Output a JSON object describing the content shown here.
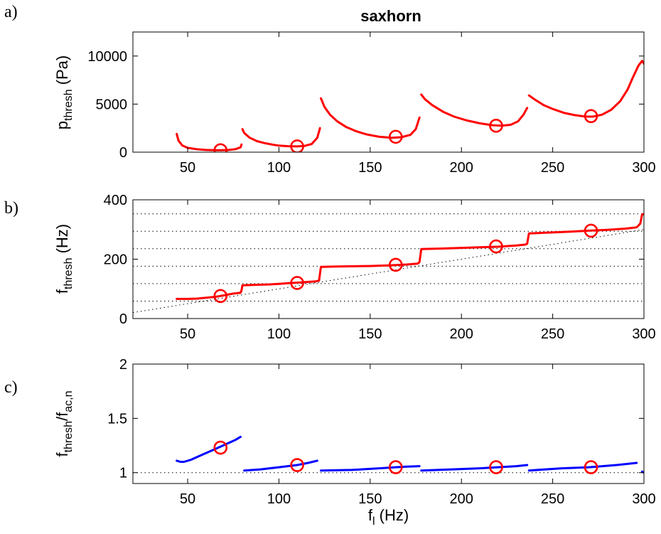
{
  "title": "saxhorn",
  "panel_labels": [
    "a)",
    "b)",
    "c)"
  ],
  "colors": {
    "red": "#ff0000",
    "blue": "#0000ff",
    "axis": "#000000",
    "ref": "#000000"
  },
  "chart_data": [
    {
      "panel": "a)",
      "type": "line",
      "ylabel": {
        "base": "p",
        "sub": "thresh",
        "unit": " (Pa)"
      },
      "xlabel": "",
      "xlim": [
        20,
        300
      ],
      "ylim": [
        0,
        12500
      ],
      "xticks": [
        "50",
        "100",
        "150",
        "200",
        "250",
        "300"
      ],
      "xtick_values": [
        50,
        100,
        150,
        200,
        250,
        300
      ],
      "yticks": [
        "0",
        "5000",
        "10000"
      ],
      "ytick_values": [
        0,
        5000,
        10000
      ],
      "series": [
        {
          "color": "#ff0000",
          "segments": [
            [
              [
                44,
                1900
              ],
              [
                45,
                1200
              ],
              [
                47,
                700
              ],
              [
                50,
                450
              ],
              [
                55,
                300
              ],
              [
                60,
                230
              ],
              [
                65,
                200
              ],
              [
                68,
                200
              ],
              [
                72,
                220
              ],
              [
                76,
                300
              ],
              [
                79,
                500
              ],
              [
                79.5,
                800
              ]
            ],
            [
              [
                80,
                2400
              ],
              [
                81,
                2000
              ],
              [
                84,
                1500
              ],
              [
                88,
                1150
              ],
              [
                92,
                950
              ],
              [
                96,
                800
              ],
              [
                100,
                680
              ],
              [
                105,
                620
              ],
              [
                110,
                600
              ],
              [
                114,
                650
              ],
              [
                118,
                850
              ],
              [
                121,
                1500
              ],
              [
                122.5,
                2500
              ]
            ],
            [
              [
                123,
                5600
              ],
              [
                125,
                4700
              ],
              [
                128,
                3900
              ],
              [
                132,
                3200
              ],
              [
                137,
                2600
              ],
              [
                142,
                2200
              ],
              [
                148,
                1850
              ],
              [
                155,
                1600
              ],
              [
                162,
                1500
              ],
              [
                167,
                1550
              ],
              [
                172,
                1800
              ],
              [
                175,
                2400
              ],
              [
                177,
                3600
              ]
            ],
            [
              [
                178,
                6000
              ],
              [
                180,
                5500
              ],
              [
                184,
                4900
              ],
              [
                190,
                4200
              ],
              [
                196,
                3700
              ],
              [
                203,
                3300
              ],
              [
                210,
                3000
              ],
              [
                217,
                2800
              ],
              [
                222,
                2760
              ],
              [
                227,
                2850
              ],
              [
                231,
                3200
              ],
              [
                234,
                3900
              ],
              [
                236,
                4600
              ]
            ],
            [
              [
                237,
                5900
              ],
              [
                240,
                5500
              ],
              [
                245,
                4900
              ],
              [
                250,
                4500
              ],
              [
                256,
                4100
              ],
              [
                262,
                3850
              ],
              [
                268,
                3700
              ],
              [
                272,
                3700
              ],
              [
                277,
                3900
              ],
              [
                282,
                4400
              ],
              [
                287,
                5300
              ],
              [
                291,
                6500
              ],
              [
                294,
                7800
              ],
              [
                297,
                9000
              ],
              [
                299,
                9500
              ],
              [
                300,
                9200
              ]
            ]
          ]
        }
      ],
      "markers": [
        [
          68,
          200
        ],
        [
          110,
          600
        ],
        [
          164,
          1600
        ],
        [
          219,
          2750
        ],
        [
          271,
          3750
        ]
      ],
      "hlines": []
    },
    {
      "panel": "b)",
      "type": "line",
      "ylabel": {
        "base": "f",
        "sub": "thresh",
        "unit": " (Hz)"
      },
      "xlabel": "",
      "xlim": [
        20,
        300
      ],
      "ylim": [
        0,
        400
      ],
      "xticks": [
        "50",
        "100",
        "150",
        "200",
        "250",
        "300"
      ],
      "xtick_values": [
        50,
        100,
        150,
        200,
        250,
        300
      ],
      "yticks": [
        "0",
        "200",
        "400"
      ],
      "ytick_values": [
        0,
        200,
        400
      ],
      "series": [
        {
          "color": "#ff0000",
          "segments": [
            [
              [
                44,
                66
              ],
              [
                50,
                66
              ],
              [
                55,
                67
              ],
              [
                60,
                70
              ],
              [
                65,
                73
              ],
              [
                70,
                78
              ],
              [
                75,
                84
              ],
              [
                79,
                87
              ],
              [
                79.5,
                95
              ],
              [
                80,
                112
              ],
              [
                85,
                113
              ],
              [
                90,
                114
              ],
              [
                95,
                115
              ],
              [
                100,
                117
              ],
              [
                105,
                119
              ],
              [
                110,
                121
              ],
              [
                115,
                123
              ],
              [
                120,
                125
              ],
              [
                122,
                128
              ],
              [
                123,
                174
              ],
              [
                130,
                175
              ],
              [
                140,
                176
              ],
              [
                150,
                177
              ],
              [
                160,
                179
              ],
              [
                170,
                182
              ],
              [
                176,
                185
              ],
              [
                177,
                190
              ],
              [
                178,
                234
              ],
              [
                190,
                236
              ],
              [
                200,
                238
              ],
              [
                210,
                240
              ],
              [
                220,
                242
              ],
              [
                230,
                246
              ],
              [
                235,
                249
              ],
              [
                236,
                252
              ],
              [
                237,
                287
              ],
              [
                250,
                290
              ],
              [
                260,
                293
              ],
              [
                270,
                296
              ],
              [
                280,
                299
              ],
              [
                290,
                303
              ],
              [
                296,
                307
              ],
              [
                298,
                320
              ],
              [
                299,
                351
              ],
              [
                300,
                352
              ]
            ]
          ]
        }
      ],
      "markers": [
        [
          68,
          76
        ],
        [
          110,
          120
        ],
        [
          164,
          181
        ],
        [
          219,
          243
        ],
        [
          271,
          296
        ]
      ],
      "hlines": [
        58.8,
        117.6,
        176.4,
        235.2,
        294,
        352.8
      ],
      "diagonal": [
        [
          20,
          20
        ],
        [
          300,
          300
        ]
      ]
    },
    {
      "panel": "c)",
      "type": "line",
      "ylabel": {
        "base": "f",
        "sub": "thresh",
        "mid": "/f",
        "sub2": "ac,n"
      },
      "xlabel": {
        "base": "f",
        "sub": "l",
        "unit": " (Hz)"
      },
      "xlim": [
        20,
        300
      ],
      "ylim": [
        0.9,
        2.0
      ],
      "xticks": [
        "50",
        "100",
        "150",
        "200",
        "250",
        "300"
      ],
      "xtick_values": [
        50,
        100,
        150,
        200,
        250,
        300
      ],
      "yticks": [
        "1",
        "1.5",
        "2"
      ],
      "ytick_values": [
        1,
        1.5,
        2
      ],
      "series": [
        {
          "color": "#0000ff",
          "segments": [
            [
              [
                44,
                1.11
              ],
              [
                46,
                1.1
              ],
              [
                48,
                1.1
              ],
              [
                52,
                1.12
              ],
              [
                56,
                1.15
              ],
              [
                60,
                1.18
              ],
              [
                64,
                1.21
              ],
              [
                68,
                1.24
              ],
              [
                72,
                1.27
              ],
              [
                76,
                1.3
              ],
              [
                79,
                1.33
              ]
            ],
            [
              [
                81,
                1.02
              ],
              [
                90,
                1.03
              ],
              [
                100,
                1.05
              ],
              [
                110,
                1.07
              ],
              [
                116,
                1.09
              ],
              [
                121,
                1.11
              ]
            ],
            [
              [
                123,
                1.02
              ],
              [
                140,
                1.025
              ],
              [
                155,
                1.04
              ],
              [
                164,
                1.05
              ],
              [
                170,
                1.055
              ],
              [
                177,
                1.06
              ]
            ],
            [
              [
                178,
                1.02
              ],
              [
                195,
                1.03
              ],
              [
                210,
                1.04
              ],
              [
                220,
                1.05
              ],
              [
                230,
                1.06
              ],
              [
                236,
                1.07
              ]
            ],
            [
              [
                237,
                1.02
              ],
              [
                255,
                1.04
              ],
              [
                270,
                1.05
              ],
              [
                285,
                1.07
              ],
              [
                296,
                1.09
              ]
            ],
            [
              [
                299,
                1.01
              ],
              [
                300,
                1.0
              ]
            ]
          ]
        }
      ],
      "markers": [
        [
          68,
          1.23
        ],
        [
          110,
          1.07
        ],
        [
          164,
          1.05
        ],
        [
          219,
          1.05
        ],
        [
          271,
          1.05
        ]
      ],
      "hlines": [
        1.0
      ]
    }
  ]
}
